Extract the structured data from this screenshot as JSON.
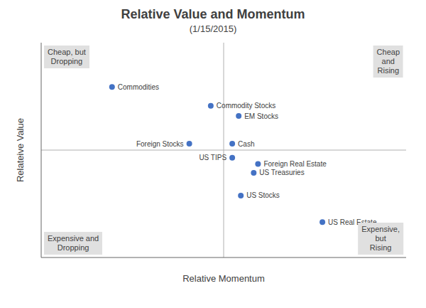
{
  "chart_data": {
    "type": "scatter",
    "title": "Relative Value and Momentum",
    "subtitle": "(1/15/2015)",
    "xlabel": "Relative Momentum",
    "ylabel": "Relateive Value",
    "labels": [
      "Commodities",
      "Commodity Stocks",
      "EM Stocks",
      "Foreign Stocks",
      "Cash",
      "US TIPS",
      "Foreign Real Estate",
      "US Treasuries",
      "US Stocks",
      "US Real Estate"
    ],
    "x": [
      -0.52,
      -0.06,
      0.07,
      -0.16,
      0.04,
      0.04,
      0.16,
      0.14,
      0.08,
      0.46
    ],
    "values": [
      0.5,
      0.35,
      0.27,
      0.05,
      0.05,
      -0.06,
      -0.11,
      -0.18,
      -0.36,
      -0.57
    ],
    "color": "#4472c4",
    "xlim": [
      -0.85,
      0.85
    ],
    "ylim": [
      -0.85,
      0.85
    ],
    "annotations": [
      "Cheap, but\nDropping",
      "Cheap and\nRising",
      "Expensive and\nDropping",
      "Expensive, but\nRising"
    ],
    "tick_labels": false,
    "grid": false
  }
}
